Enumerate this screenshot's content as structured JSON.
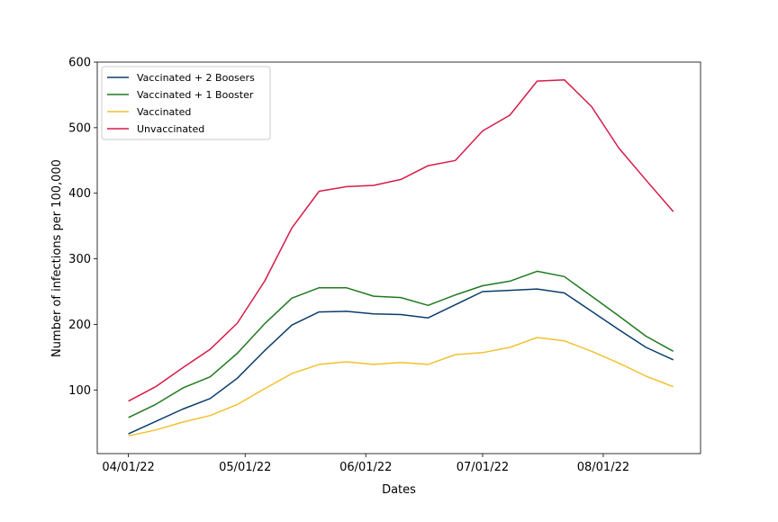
{
  "chart_data": {
    "type": "line",
    "title": "",
    "xlabel": "Dates",
    "ylabel": "Number of infections per 100,000",
    "x_tick_labels": [
      "04/01/22",
      "05/01/22",
      "06/01/22",
      "07/01/22",
      "08/01/22"
    ],
    "x_tick_dates": [
      "2022-04-01",
      "2022-05-01",
      "2022-06-01",
      "2022-07-01",
      "2022-08-01"
    ],
    "y_ticks": [
      100,
      200,
      300,
      400,
      500,
      600
    ],
    "ylim": [
      3,
      600
    ],
    "xlim": [
      "2022-03-24",
      "2022-08-26"
    ],
    "grid": false,
    "legend_position": "top-left",
    "x": [
      "2022-04-01",
      "2022-04-08",
      "2022-04-15",
      "2022-04-22",
      "2022-04-29",
      "2022-05-06",
      "2022-05-13",
      "2022-05-20",
      "2022-05-27",
      "2022-06-03",
      "2022-06-10",
      "2022-06-17",
      "2022-06-24",
      "2022-07-01",
      "2022-07-08",
      "2022-07-15",
      "2022-07-22",
      "2022-07-29",
      "2022-08-05",
      "2022-08-12",
      "2022-08-19"
    ],
    "series": [
      {
        "name": "Vaccinated + 2 Boosers",
        "color": "#0b3d6b",
        "values": [
          33,
          52,
          71,
          87,
          118,
          160,
          199,
          219,
          220,
          216,
          215,
          210,
          230,
          250,
          252,
          254,
          248,
          220,
          192,
          165,
          146
        ]
      },
      {
        "name": "Vaccinated + 1 Booster",
        "color": "#1f7a1f",
        "values": [
          58,
          78,
          103,
          120,
          156,
          201,
          240,
          256,
          256,
          243,
          241,
          229,
          245,
          259,
          266,
          281,
          273,
          243,
          213,
          182,
          159
        ]
      },
      {
        "name": "Vaccinated",
        "color": "#f2c12e",
        "values": [
          30,
          39,
          51,
          61,
          78,
          102,
          125,
          139,
          143,
          139,
          142,
          139,
          154,
          157,
          165,
          180,
          175,
          159,
          141,
          121,
          105
        ]
      },
      {
        "name": "Unvaccinated",
        "color": "#d81b47",
        "values": [
          83,
          105,
          134,
          162,
          202,
          266,
          347,
          403,
          410,
          412,
          421,
          442,
          450,
          495,
          519,
          571,
          573,
          532,
          469,
          420,
          372
        ]
      }
    ]
  }
}
